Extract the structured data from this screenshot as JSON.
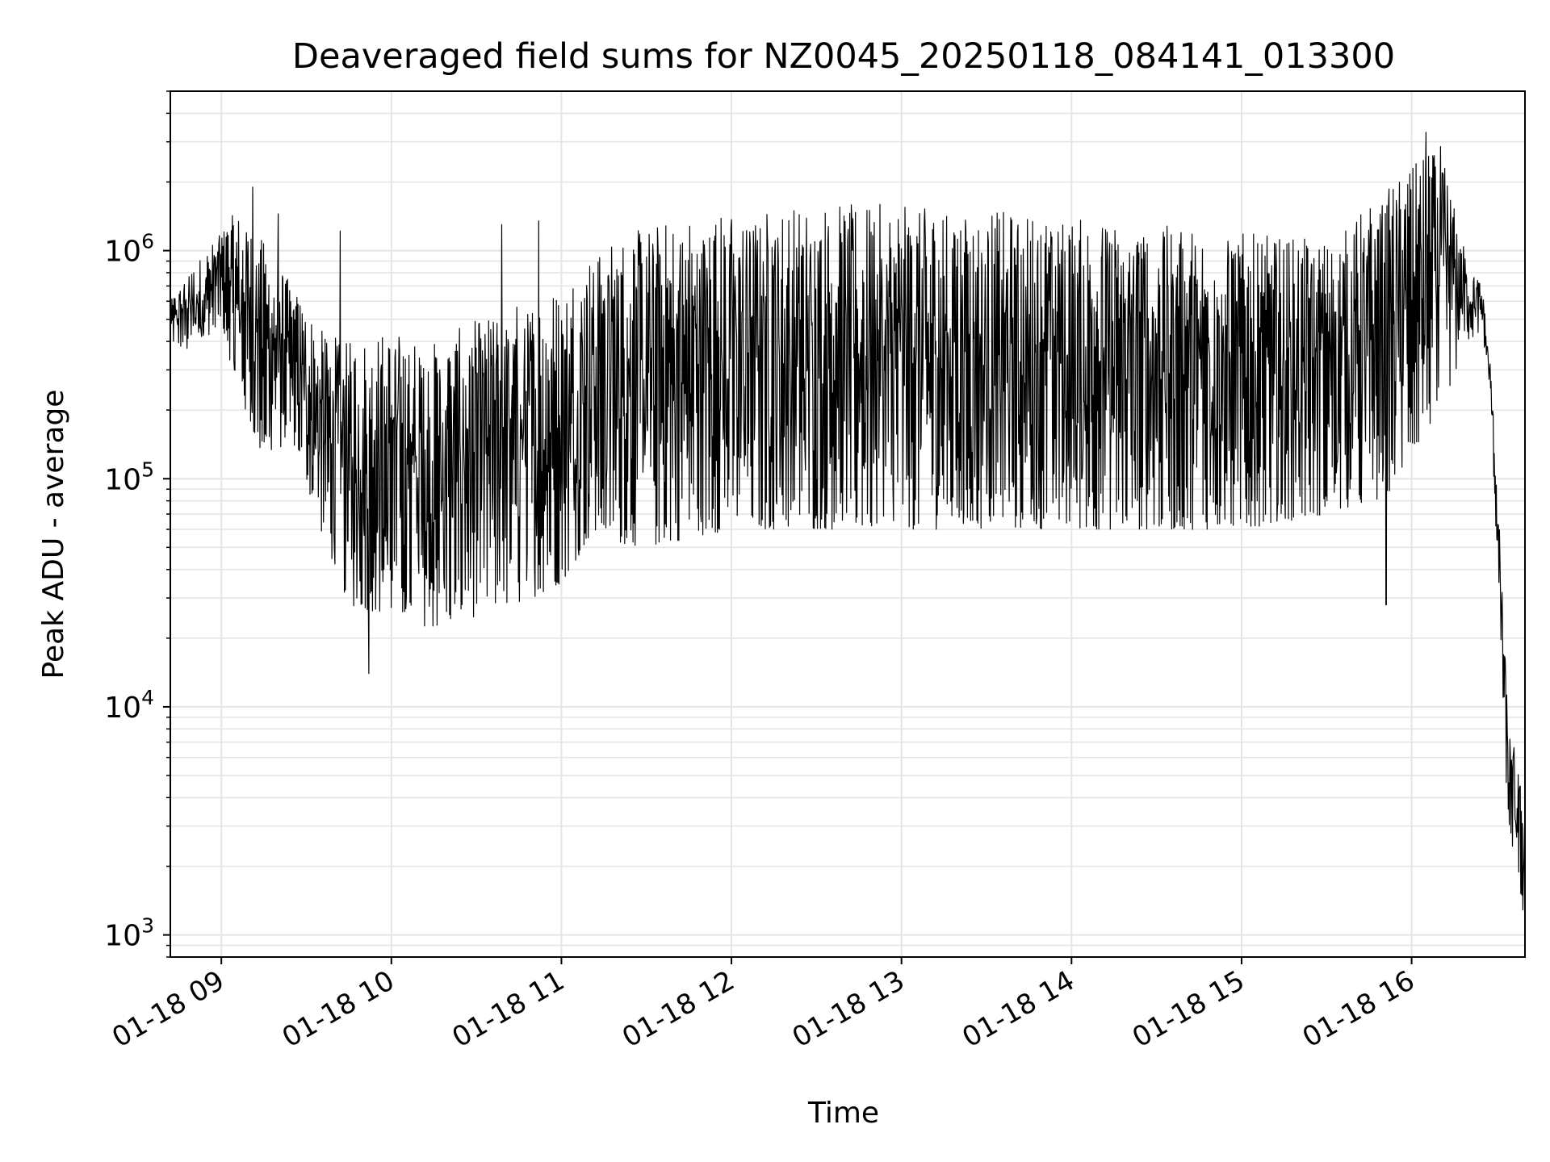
{
  "chart_data": {
    "type": "line",
    "title": "Deaveraged field sums for NZ0045_20250118_084141_013300",
    "xlabel": "Time",
    "ylabel": "Peak ADU - average",
    "yscale": "log",
    "xlim": [
      "2025-01-18 08:42",
      "2025-01-18 16:40"
    ],
    "ylim": [
      800,
      5000000
    ],
    "grid": true,
    "line_color": "#000000",
    "grid_color": "#e5e5e5",
    "x_ticks": [
      {
        "value": "2025-01-18 09:00",
        "label": "01-18 09"
      },
      {
        "value": "2025-01-18 10:00",
        "label": "01-18 10"
      },
      {
        "value": "2025-01-18 11:00",
        "label": "01-18 11"
      },
      {
        "value": "2025-01-18 12:00",
        "label": "01-18 12"
      },
      {
        "value": "2025-01-18 13:00",
        "label": "01-18 13"
      },
      {
        "value": "2025-01-18 14:00",
        "label": "01-18 14"
      },
      {
        "value": "2025-01-18 15:00",
        "label": "01-18 15"
      },
      {
        "value": "2025-01-18 16:00",
        "label": "01-18 16"
      }
    ],
    "y_ticks": [
      {
        "value": 1000,
        "base": "10",
        "exp": "3"
      },
      {
        "value": 10000,
        "base": "10",
        "exp": "4"
      },
      {
        "value": 100000,
        "base": "10",
        "exp": "5"
      },
      {
        "value": 1000000,
        "base": "10",
        "exp": "6"
      }
    ],
    "series": [
      {
        "envelope": [
          {
            "t": "2025-01-18 08:42",
            "lo": 400000,
            "hi": 600000
          },
          {
            "t": "2025-01-18 08:50",
            "lo": 350000,
            "hi": 850000
          },
          {
            "t": "2025-01-18 09:00",
            "lo": 500000,
            "hi": 1200000
          },
          {
            "t": "2025-01-18 09:05",
            "lo": 250000,
            "hi": 1500000
          },
          {
            "t": "2025-01-18 09:15",
            "lo": 120000,
            "hi": 1100000
          },
          {
            "t": "2025-01-18 09:25",
            "lo": 150000,
            "hi": 700000
          },
          {
            "t": "2025-01-18 09:35",
            "lo": 60000,
            "hi": 450000
          },
          {
            "t": "2025-01-18 09:45",
            "lo": 28000,
            "hi": 400000
          },
          {
            "t": "2025-01-18 10:00",
            "lo": 25000,
            "hi": 450000
          },
          {
            "t": "2025-01-18 10:15",
            "lo": 22000,
            "hi": 400000
          },
          {
            "t": "2025-01-18 10:30",
            "lo": 25000,
            "hi": 500000
          },
          {
            "t": "2025-01-18 10:45",
            "lo": 28000,
            "hi": 600000
          },
          {
            "t": "2025-01-18 11:00",
            "lo": 35000,
            "hi": 700000
          },
          {
            "t": "2025-01-18 11:10",
            "lo": 55000,
            "hi": 1000000
          },
          {
            "t": "2025-01-18 11:30",
            "lo": 50000,
            "hi": 1300000
          },
          {
            "t": "2025-01-18 12:00",
            "lo": 60000,
            "hi": 1500000
          },
          {
            "t": "2025-01-18 12:30",
            "lo": 60000,
            "hi": 1600000
          },
          {
            "t": "2025-01-18 13:00",
            "lo": 60000,
            "hi": 1600000
          },
          {
            "t": "2025-01-18 13:30",
            "lo": 60000,
            "hi": 1500000
          },
          {
            "t": "2025-01-18 14:00",
            "lo": 60000,
            "hi": 1400000
          },
          {
            "t": "2025-01-18 14:30",
            "lo": 60000,
            "hi": 1300000
          },
          {
            "t": "2025-01-18 15:00",
            "lo": 60000,
            "hi": 1200000
          },
          {
            "t": "2025-01-18 15:30",
            "lo": 70000,
            "hi": 1100000
          },
          {
            "t": "2025-01-18 15:50",
            "lo": 80000,
            "hi": 1800000
          },
          {
            "t": "2025-01-18 16:10",
            "lo": 200000,
            "hi": 3000000
          },
          {
            "t": "2025-01-18 16:20",
            "lo": 400000,
            "hi": 900000
          },
          {
            "t": "2025-01-18 16:25",
            "lo": 450000,
            "hi": 700000
          },
          {
            "t": "2025-01-18 16:28",
            "lo": 200000,
            "hi": 300000
          },
          {
            "t": "2025-01-18 16:31",
            "lo": 25000,
            "hi": 60000
          },
          {
            "t": "2025-01-18 16:34",
            "lo": 3000,
            "hi": 9000
          },
          {
            "t": "2025-01-18 16:37",
            "lo": 2000,
            "hi": 6000
          },
          {
            "t": "2025-01-18 16:40",
            "lo": 1100,
            "hi": 3500
          }
        ],
        "peaks": [
          {
            "t": "2025-01-18 09:11",
            "y": 1900000
          },
          {
            "t": "2025-01-18 09:20",
            "y": 1450000
          },
          {
            "t": "2025-01-18 09:42",
            "y": 1220000
          },
          {
            "t": "2025-01-18 09:52",
            "y": 14000
          },
          {
            "t": "2025-01-18 10:39",
            "y": 1300000
          },
          {
            "t": "2025-01-18 10:52",
            "y": 1350000
          },
          {
            "t": "2025-01-18 15:51",
            "y": 28000
          },
          {
            "t": "2025-01-18 16:05",
            "y": 3300000
          },
          {
            "t": "2025-01-18 16:35",
            "y": 2800
          }
        ]
      }
    ]
  }
}
